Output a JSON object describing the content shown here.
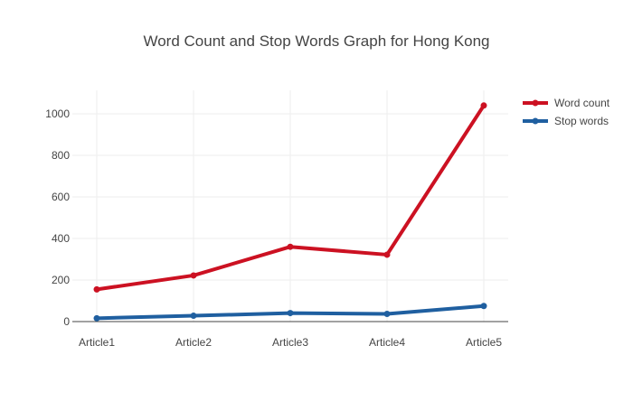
{
  "chart_data": {
    "type": "line",
    "title": "Word Count and Stop Words Graph for Hong Kong",
    "xlabel": "",
    "ylabel": "",
    "categories": [
      "Article1",
      "Article2",
      "Article3",
      "Article4",
      "Article5"
    ],
    "ylim": [
      0,
      1100
    ],
    "yticks": [
      0,
      200,
      400,
      600,
      800,
      1000
    ],
    "grid": true,
    "legend_position": "top-right",
    "series": [
      {
        "name": "Word count",
        "color": "#cc1122",
        "values": [
          155,
          222,
          360,
          322,
          1040
        ]
      },
      {
        "name": "Stop words",
        "color": "#1f5fa0",
        "values": [
          16,
          28,
          41,
          37,
          75
        ]
      }
    ]
  }
}
